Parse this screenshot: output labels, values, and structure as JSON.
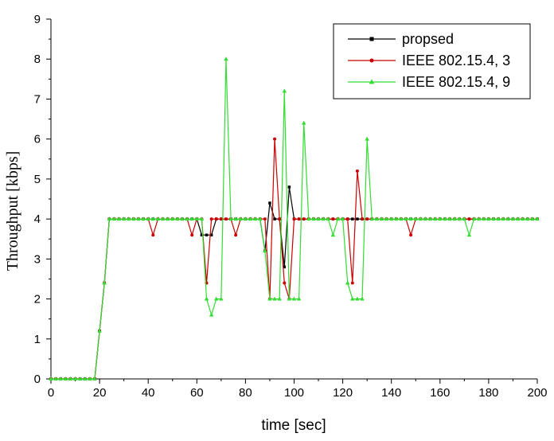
{
  "chart_data": {
    "type": "line",
    "title": "",
    "xlabel": "time [sec]",
    "ylabel": "Throughput [kbps]",
    "xlim": [
      0,
      200
    ],
    "ylim": [
      0,
      9
    ],
    "xticks": [
      0,
      20,
      40,
      60,
      80,
      100,
      120,
      140,
      160,
      180,
      200
    ],
    "yticks": [
      0,
      1,
      2,
      3,
      4,
      5,
      6,
      7,
      8,
      9
    ],
    "grid": false,
    "legend_position": "top-right",
    "series": [
      {
        "name": "propsed",
        "color": "#000000",
        "marker": "square",
        "x": [
          0,
          2,
          4,
          6,
          8,
          10,
          12,
          14,
          16,
          18,
          20,
          22,
          24,
          26,
          28,
          30,
          32,
          34,
          36,
          38,
          40,
          42,
          44,
          46,
          48,
          50,
          52,
          54,
          56,
          58,
          60,
          62,
          64,
          66,
          68,
          70,
          72,
          74,
          76,
          78,
          80,
          82,
          84,
          86,
          88,
          90,
          92,
          94,
          96,
          98,
          100,
          102,
          104,
          106,
          108,
          110,
          112,
          114,
          116,
          118,
          120,
          122,
          124,
          126,
          128,
          130,
          132,
          134,
          136,
          138,
          140,
          142,
          144,
          146,
          148,
          150,
          152,
          154,
          156,
          158,
          160,
          162,
          164,
          166,
          168,
          170,
          172,
          174,
          176,
          178,
          180,
          182,
          184,
          186,
          188,
          190,
          192,
          194,
          196,
          198,
          200
        ],
        "y": [
          0,
          0,
          0,
          0,
          0,
          0,
          0,
          0,
          0,
          0,
          1.2,
          2.4,
          4,
          4,
          4,
          4,
          4,
          4,
          4,
          4,
          4,
          4,
          4,
          4,
          4,
          4,
          4,
          4,
          4,
          4,
          4,
          3.6,
          3.6,
          3.6,
          4,
          4,
          4,
          4,
          4,
          4,
          4,
          4,
          4,
          4,
          3.2,
          4.4,
          4,
          4,
          2.8,
          4.8,
          4,
          4,
          4,
          4,
          4,
          4,
          4,
          4,
          4,
          4,
          4,
          4,
          4,
          4,
          4,
          4,
          4,
          4,
          4,
          4,
          4,
          4,
          4,
          4,
          4,
          4,
          4,
          4,
          4,
          4,
          4,
          4,
          4,
          4,
          4,
          4,
          4,
          4,
          4,
          4,
          4,
          4,
          4,
          4,
          4,
          4,
          4,
          4,
          4,
          4,
          4
        ]
      },
      {
        "name": "IEEE 802.15.4, 3",
        "color": "#cc0000",
        "marker": "circle",
        "x": [
          0,
          2,
          4,
          6,
          8,
          10,
          12,
          14,
          16,
          18,
          20,
          22,
          24,
          26,
          28,
          30,
          32,
          34,
          36,
          38,
          40,
          42,
          44,
          46,
          48,
          50,
          52,
          54,
          56,
          58,
          60,
          62,
          64,
          66,
          68,
          70,
          72,
          74,
          76,
          78,
          80,
          82,
          84,
          86,
          88,
          90,
          92,
          94,
          96,
          98,
          100,
          102,
          104,
          106,
          108,
          110,
          112,
          114,
          116,
          118,
          120,
          122,
          124,
          126,
          128,
          130,
          132,
          134,
          136,
          138,
          140,
          142,
          144,
          146,
          148,
          150,
          152,
          154,
          156,
          158,
          160,
          162,
          164,
          166,
          168,
          170,
          172,
          174,
          176,
          178,
          180,
          182,
          184,
          186,
          188,
          190,
          192,
          194,
          196,
          198,
          200
        ],
        "y": [
          0,
          0,
          0,
          0,
          0,
          0,
          0,
          0,
          0,
          0,
          1.2,
          2.4,
          4,
          4,
          4,
          4,
          4,
          4,
          4,
          4,
          4,
          3.6,
          4,
          4,
          4,
          4,
          4,
          4,
          4,
          3.6,
          4,
          4,
          2.4,
          4,
          4,
          4,
          4,
          4,
          3.6,
          4,
          4,
          4,
          4,
          4,
          4,
          2,
          6,
          4,
          2.4,
          2,
          4,
          4,
          4,
          4,
          4,
          4,
          4,
          4,
          4,
          4,
          4,
          4,
          2.4,
          5.2,
          4,
          4,
          4,
          4,
          4,
          4,
          4,
          4,
          4,
          4,
          3.6,
          4,
          4,
          4,
          4,
          4,
          4,
          4,
          4,
          4,
          4,
          4,
          4,
          4,
          4,
          4,
          4,
          4,
          4,
          4,
          4,
          4,
          4,
          4,
          4,
          4,
          4
        ]
      },
      {
        "name": "IEEE 802.15.4, 9",
        "color": "#33dd33",
        "marker": "triangle",
        "x": [
          0,
          2,
          4,
          6,
          8,
          10,
          12,
          14,
          16,
          18,
          20,
          22,
          24,
          26,
          28,
          30,
          32,
          34,
          36,
          38,
          40,
          42,
          44,
          46,
          48,
          50,
          52,
          54,
          56,
          58,
          60,
          62,
          64,
          66,
          68,
          70,
          72,
          74,
          76,
          78,
          80,
          82,
          84,
          86,
          88,
          90,
          92,
          94,
          96,
          98,
          100,
          102,
          104,
          106,
          108,
          110,
          112,
          114,
          116,
          118,
          120,
          122,
          124,
          126,
          128,
          130,
          132,
          134,
          136,
          138,
          140,
          142,
          144,
          146,
          148,
          150,
          152,
          154,
          156,
          158,
          160,
          162,
          164,
          166,
          168,
          170,
          172,
          174,
          176,
          178,
          180,
          182,
          184,
          186,
          188,
          190,
          192,
          194,
          196,
          198,
          200
        ],
        "y": [
          0,
          0,
          0,
          0,
          0,
          0,
          0,
          0,
          0,
          0,
          1.2,
          2.4,
          4,
          4,
          4,
          4,
          4,
          4,
          4,
          4,
          4,
          4,
          4,
          4,
          4,
          4,
          4,
          4,
          4,
          4,
          4,
          4,
          2,
          1.6,
          2,
          2,
          8,
          4,
          4,
          4,
          4,
          4,
          4,
          4,
          3.2,
          2,
          2,
          2,
          7.2,
          2,
          2,
          2,
          6.4,
          4,
          4,
          4,
          4,
          4,
          3.6,
          4,
          4,
          2.4,
          2,
          2,
          2,
          6,
          4,
          4,
          4,
          4,
          4,
          4,
          4,
          4,
          4,
          4,
          4,
          4,
          4,
          4,
          4,
          4,
          4,
          4,
          4,
          4,
          3.6,
          4,
          4,
          4,
          4,
          4,
          4,
          4,
          4,
          4,
          4,
          4,
          4,
          4,
          4
        ]
      }
    ]
  }
}
